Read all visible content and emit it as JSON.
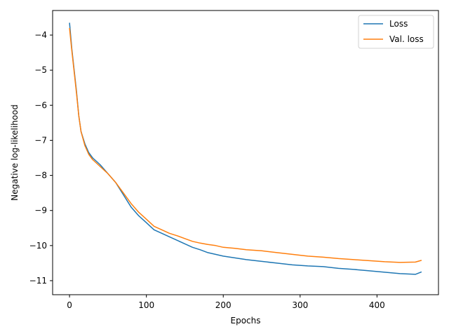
{
  "chart_data": {
    "type": "line",
    "xlabel": "Epochs",
    "ylabel": "Negative log-likelihood",
    "xlim": [
      -22,
      480
    ],
    "ylim": [
      -11.4,
      -3.3
    ],
    "xticks": [
      0,
      100,
      200,
      300,
      400
    ],
    "yticks": [
      -4,
      -5,
      -6,
      -7,
      -8,
      -9,
      -10,
      -11
    ],
    "ytick_labels": [
      "−4",
      "−5",
      "−6",
      "−7",
      "−8",
      "−9",
      "−10",
      "−11"
    ],
    "xtick_labels": [
      "0",
      "100",
      "200",
      "300",
      "400"
    ],
    "grid": false,
    "legend": {
      "position": "top-right"
    },
    "series": [
      {
        "name": "Loss",
        "color": "#1f77b4",
        "points": [
          [
            0,
            -3.65
          ],
          [
            3,
            -4.4
          ],
          [
            6,
            -5.0
          ],
          [
            9,
            -5.6
          ],
          [
            12,
            -6.3
          ],
          [
            15,
            -6.75
          ],
          [
            20,
            -7.1
          ],
          [
            25,
            -7.35
          ],
          [
            30,
            -7.5
          ],
          [
            35,
            -7.6
          ],
          [
            40,
            -7.7
          ],
          [
            50,
            -7.95
          ],
          [
            60,
            -8.2
          ],
          [
            70,
            -8.55
          ],
          [
            80,
            -8.9
          ],
          [
            90,
            -9.15
          ],
          [
            100,
            -9.35
          ],
          [
            110,
            -9.55
          ],
          [
            120,
            -9.65
          ],
          [
            130,
            -9.75
          ],
          [
            140,
            -9.85
          ],
          [
            150,
            -9.95
          ],
          [
            160,
            -10.05
          ],
          [
            170,
            -10.12
          ],
          [
            180,
            -10.2
          ],
          [
            190,
            -10.25
          ],
          [
            200,
            -10.3
          ],
          [
            215,
            -10.35
          ],
          [
            230,
            -10.4
          ],
          [
            250,
            -10.45
          ],
          [
            270,
            -10.5
          ],
          [
            290,
            -10.55
          ],
          [
            310,
            -10.58
          ],
          [
            330,
            -10.6
          ],
          [
            350,
            -10.65
          ],
          [
            370,
            -10.68
          ],
          [
            390,
            -10.72
          ],
          [
            410,
            -10.76
          ],
          [
            430,
            -10.8
          ],
          [
            450,
            -10.82
          ],
          [
            458,
            -10.75
          ]
        ]
      },
      {
        "name": "Val. loss",
        "color": "#ff7f0e",
        "points": [
          [
            0,
            -3.8
          ],
          [
            3,
            -4.45
          ],
          [
            6,
            -5.05
          ],
          [
            9,
            -5.65
          ],
          [
            12,
            -6.3
          ],
          [
            15,
            -6.75
          ],
          [
            20,
            -7.15
          ],
          [
            25,
            -7.4
          ],
          [
            30,
            -7.55
          ],
          [
            35,
            -7.65
          ],
          [
            40,
            -7.75
          ],
          [
            50,
            -7.95
          ],
          [
            60,
            -8.2
          ],
          [
            70,
            -8.5
          ],
          [
            80,
            -8.8
          ],
          [
            90,
            -9.05
          ],
          [
            100,
            -9.25
          ],
          [
            110,
            -9.45
          ],
          [
            120,
            -9.55
          ],
          [
            130,
            -9.65
          ],
          [
            140,
            -9.72
          ],
          [
            150,
            -9.8
          ],
          [
            160,
            -9.88
          ],
          [
            170,
            -9.93
          ],
          [
            180,
            -9.97
          ],
          [
            190,
            -10.0
          ],
          [
            200,
            -10.05
          ],
          [
            215,
            -10.08
          ],
          [
            230,
            -10.12
          ],
          [
            250,
            -10.15
          ],
          [
            270,
            -10.2
          ],
          [
            290,
            -10.25
          ],
          [
            310,
            -10.3
          ],
          [
            330,
            -10.33
          ],
          [
            350,
            -10.37
          ],
          [
            370,
            -10.4
          ],
          [
            390,
            -10.43
          ],
          [
            410,
            -10.46
          ],
          [
            430,
            -10.48
          ],
          [
            450,
            -10.47
          ],
          [
            458,
            -10.42
          ]
        ]
      }
    ]
  }
}
